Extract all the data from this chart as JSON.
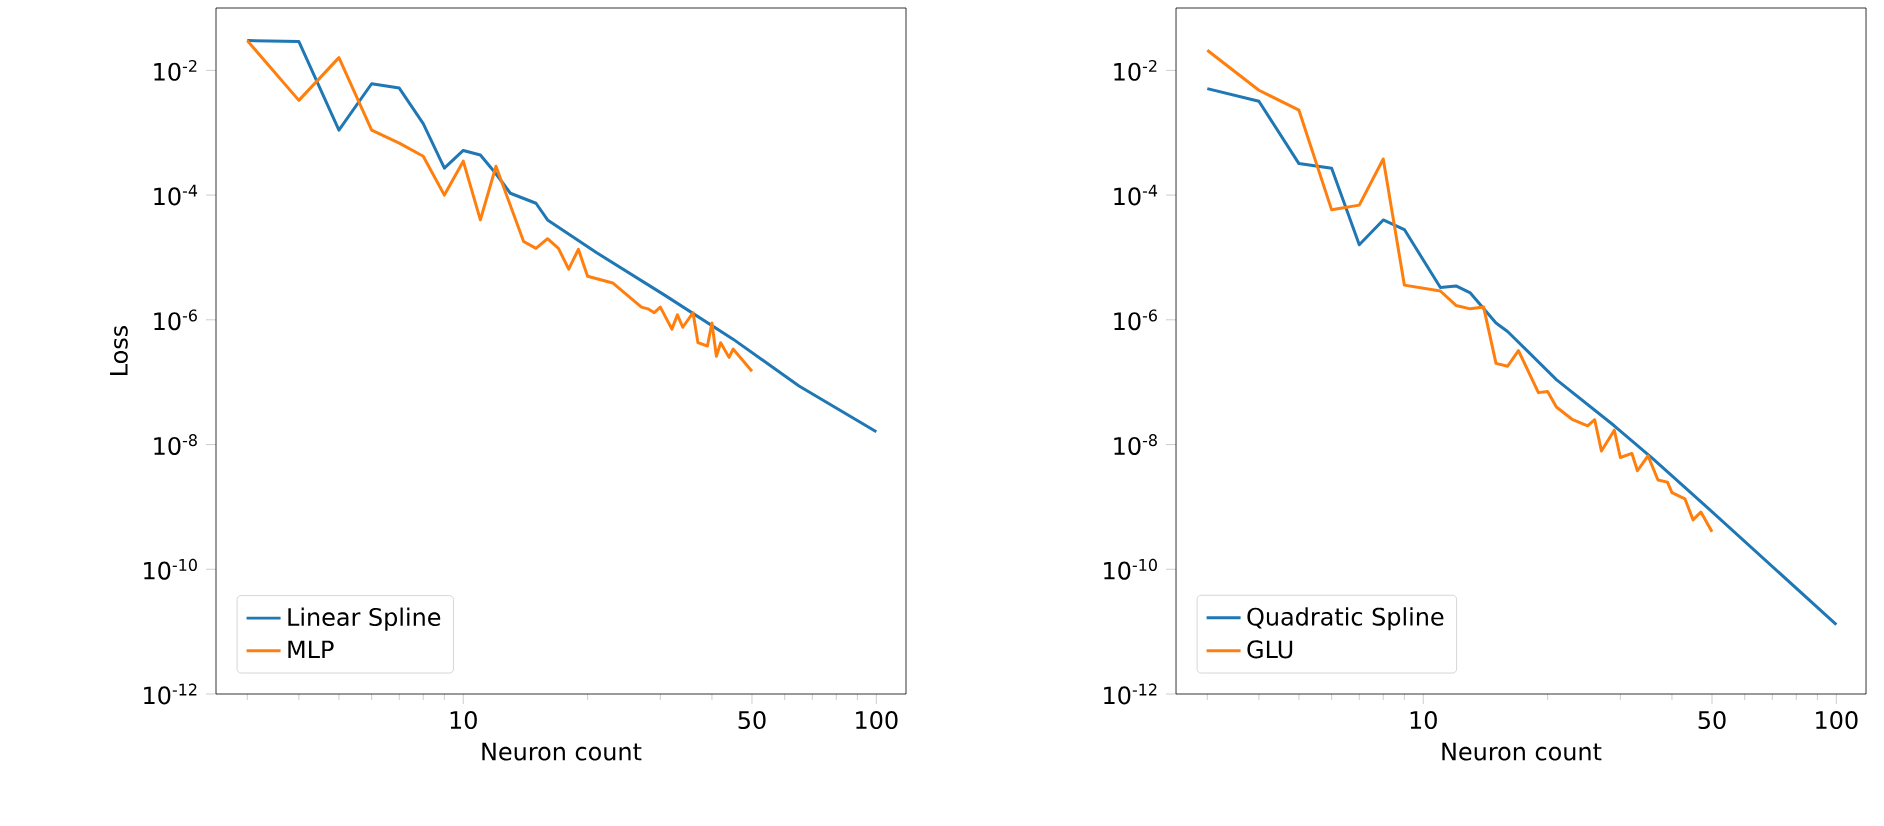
{
  "chart_data": [
    {
      "type": "line",
      "xlabel": "Neuron count",
      "ylabel": "Loss",
      "log": "xy",
      "grid": false,
      "legend": "bottom left",
      "marker": "none",
      "line_style": "solid",
      "xlim": [
        2.52,
        118
      ],
      "ylim": [
        1e-12,
        0.1
      ],
      "xticks": [
        10,
        50,
        100
      ],
      "yticks": [
        {
          "value": 1e-12,
          "label": "10$^{-12}$"
        },
        {
          "value": 1e-10,
          "label": "10$^{-10}$"
        },
        {
          "value": 1e-08,
          "label": "10$^{-8}$"
        },
        {
          "value": 1e-06,
          "label": "10$^{-6}$"
        },
        {
          "value": 0.0001,
          "label": "10$^{-4}$"
        },
        {
          "value": 0.01,
          "label": "10$^{-2}$"
        }
      ],
      "series": [
        {
          "name": "Linear Spline",
          "color": "#1f77b4",
          "x": [
            3,
            4,
            5,
            6,
            7,
            8,
            9,
            10,
            11,
            12,
            13,
            15,
            16,
            21,
            31,
            45,
            65,
            100
          ],
          "values": [
            0.03,
            0.029,
            0.0011,
            0.0061,
            0.0052,
            0.0014,
            0.00027,
            0.00052,
            0.00044,
            0.00022,
            0.000107,
            7.4e-05,
            4e-05,
            1.2e-05,
            2.4e-06,
            4.9e-07,
            8.7e-08,
            1.6e-08
          ]
        },
        {
          "name": "MLP",
          "color": "#ff7f0e",
          "x": [
            3,
            4,
            5,
            6,
            7,
            8,
            9,
            10,
            11,
            12,
            14,
            15,
            16,
            17,
            18,
            19,
            20,
            23,
            27,
            28,
            29,
            30,
            32,
            33,
            34,
            36,
            37,
            39,
            40,
            41,
            42,
            44,
            45,
            50
          ],
          "values": [
            0.03,
            0.0033,
            0.016,
            0.0011,
            0.00068,
            0.00042,
            0.0001,
            0.00035,
            4e-05,
            0.00029,
            1.8e-05,
            1.4e-05,
            2e-05,
            1.4e-05,
            6.5e-06,
            1.35e-05,
            5e-06,
            3.9e-06,
            1.6e-06,
            1.5e-06,
            1.3e-06,
            1.6e-06,
            7.1e-07,
            1.2e-06,
            7.6e-07,
            1.3e-06,
            4.3e-07,
            3.8e-07,
            8.9e-07,
            2.6e-07,
            4.3e-07,
            2.5e-07,
            3.4e-07,
            1.5e-07
          ]
        }
      ]
    },
    {
      "type": "line",
      "xlabel": "Neuron count",
      "ylabel": null,
      "log": "xy",
      "grid": false,
      "legend": "bottom left",
      "marker": "none",
      "line_style": "solid",
      "xlim": [
        2.52,
        118
      ],
      "ylim": [
        1e-12,
        0.1
      ],
      "xticks": [
        10,
        50,
        100
      ],
      "yticks": [
        {
          "value": 1e-12,
          "label": "10$^{-12}$"
        },
        {
          "value": 1e-10,
          "label": "10$^{-10}$"
        },
        {
          "value": 1e-08,
          "label": "10$^{-8}$"
        },
        {
          "value": 1e-06,
          "label": "10$^{-6}$"
        },
        {
          "value": 0.0001,
          "label": "10$^{-4}$"
        },
        {
          "value": 0.01,
          "label": "10$^{-2}$"
        }
      ],
      "series": [
        {
          "name": "Quadratic Spline",
          "color": "#1f77b4",
          "x": [
            3,
            4,
            5,
            6,
            7,
            8,
            9,
            11,
            12,
            13,
            15,
            16,
            21,
            29,
            36,
            48,
            100
          ],
          "values": [
            0.0051,
            0.0032,
            0.00032,
            0.00027,
            1.6e-05,
            4e-05,
            2.8e-05,
            3.3e-06,
            3.5e-06,
            2.7e-06,
            8.9e-07,
            6.5e-07,
            1.1e-07,
            2e-08,
            5.9e-09,
            1.07e-09,
            1.3e-11
          ]
        },
        {
          "name": "GLU",
          "color": "#ff7f0e",
          "x": [
            3,
            4,
            5,
            6,
            7,
            8,
            9,
            11,
            12,
            13,
            14,
            15,
            16,
            17,
            19,
            20,
            21,
            23,
            25,
            26,
            27,
            29,
            30,
            32,
            33,
            35,
            37,
            39,
            40,
            43,
            45,
            47,
            50
          ],
          "values": [
            0.021,
            0.0048,
            0.0023,
            5.8e-05,
            6.9e-05,
            0.00038,
            3.6e-06,
            2.9e-06,
            1.7e-06,
            1.5e-06,
            1.6e-06,
            2e-07,
            1.8e-07,
            3.2e-07,
            6.8e-08,
            7.1e-08,
            4e-08,
            2.5e-08,
            2e-08,
            2.5e-08,
            7.9e-09,
            1.7e-08,
            6.2e-09,
            7.2e-09,
            3.8e-09,
            6.6e-09,
            2.7e-09,
            2.5e-09,
            1.7e-09,
            1.35e-09,
            6.2e-10,
            8.3e-10,
            4e-10
          ]
        }
      ]
    }
  ]
}
